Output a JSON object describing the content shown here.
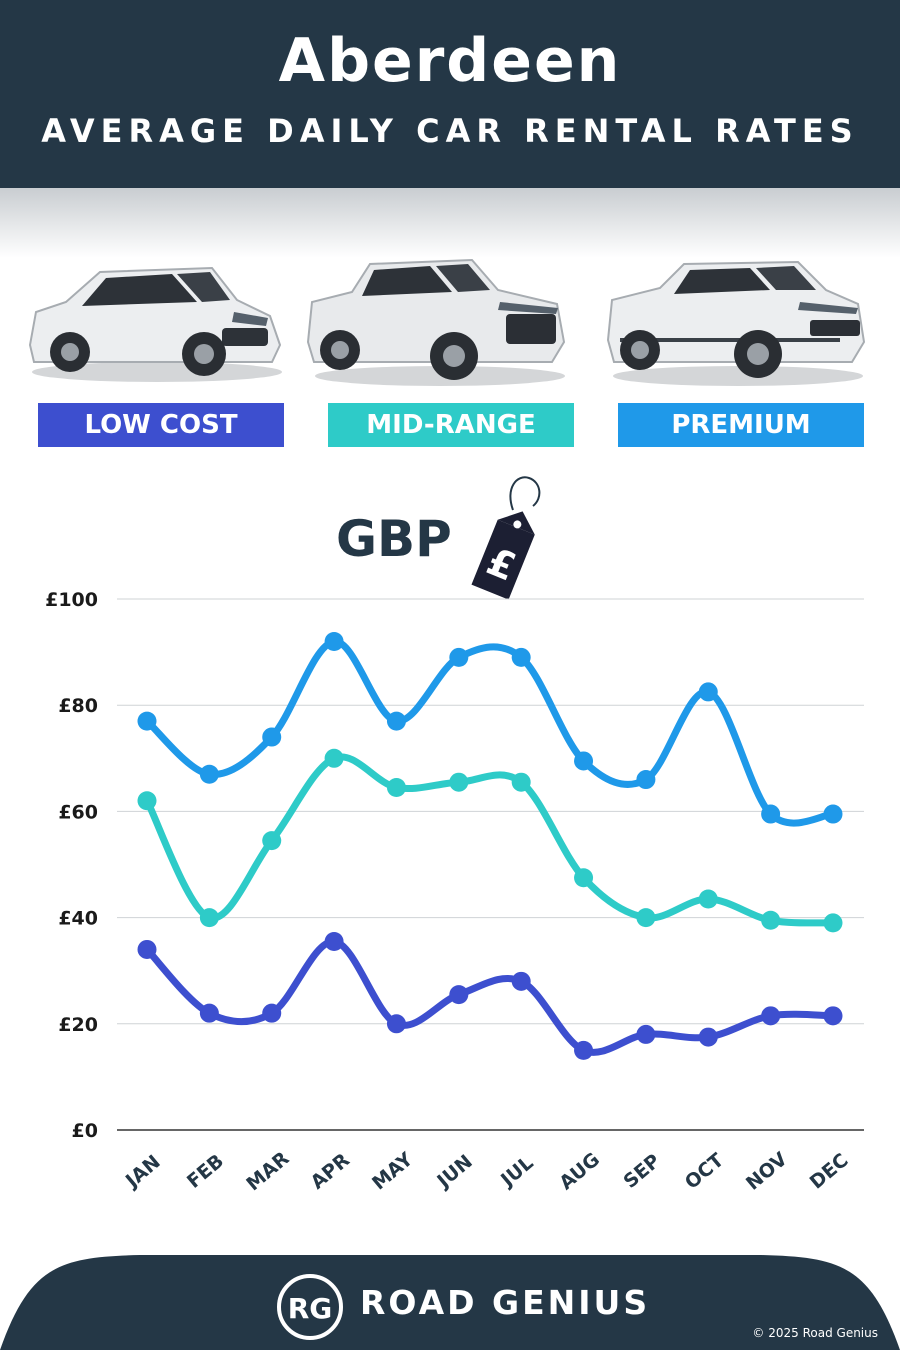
{
  "header": {
    "title": "Aberdeen",
    "subtitle": "AVERAGE DAILY CAR RENTAL RATES"
  },
  "categories": [
    {
      "label": "LOW COST",
      "color": "#3d4fcf"
    },
    {
      "label": "MID-RANGE",
      "color": "#2ecbc8"
    },
    {
      "label": "PREMIUM",
      "color": "#1f99e9"
    }
  ],
  "currency_label": "GBP",
  "tag_symbol": "£",
  "chart_data": {
    "type": "line",
    "categories": [
      "JAN",
      "FEB",
      "MAR",
      "APR",
      "MAY",
      "JUN",
      "JUL",
      "AUG",
      "SEP",
      "OCT",
      "NOV",
      "DEC"
    ],
    "y_ticks": [
      "£0",
      "£20",
      "£40",
      "£60",
      "£80",
      "£100"
    ],
    "ylim": [
      0,
      100
    ],
    "grid": true,
    "series": [
      {
        "name": "PREMIUM",
        "color": "#1f99e9",
        "values": [
          77,
          67,
          74,
          92,
          77,
          89,
          89,
          69.5,
          66,
          82.5,
          59.5,
          59.5
        ]
      },
      {
        "name": "MID-RANGE",
        "color": "#2ecbc8",
        "values": [
          62,
          40,
          54.5,
          70,
          64.5,
          65.5,
          65.5,
          47.5,
          40,
          43.5,
          39.5,
          39
        ]
      },
      {
        "name": "LOW COST",
        "color": "#3d4fcf",
        "values": [
          34,
          22,
          22,
          35.5,
          20,
          25.5,
          28,
          15,
          18,
          17.5,
          21.5,
          21.5
        ]
      }
    ]
  },
  "footer": {
    "brand": "ROAD GENIUS",
    "logo_text": "RG",
    "copyright": "© 2025 Road Genius"
  }
}
